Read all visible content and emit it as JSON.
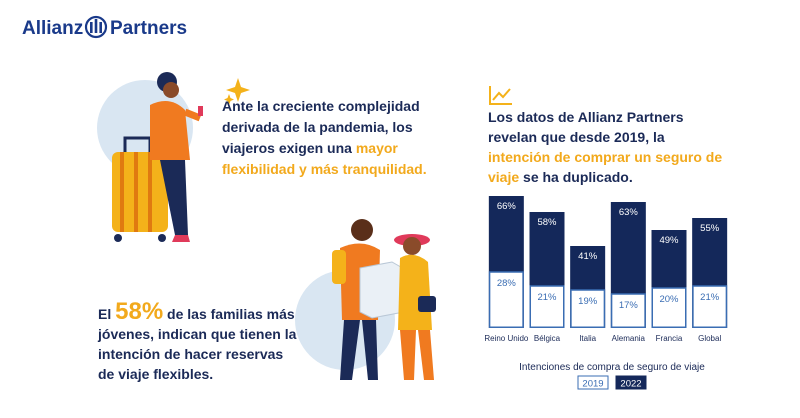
{
  "header": {
    "logo_left": "Allianz",
    "logo_right": "Partners"
  },
  "block1": {
    "text": "Ante la creciente complejidad derivada de la pandemia, los viajeros exigen una ",
    "highlight": "mayor flexibilidad y más tranquilidad."
  },
  "block2": {
    "text": "Los datos de Allianz Partners revelan que desde 2019, la ",
    "highlight": "intención de comprar un seguro de viaje",
    "text_end": " se ha duplicado."
  },
  "block3": {
    "text": "El ",
    "highlight": "58%",
    "text_end": " de las familias más jóvenes, indican que tienen la intención de hacer reservas de viaje flexibles."
  },
  "chart_data": {
    "type": "bar",
    "x_label": "Intenciones de compra de seguro de viaje",
    "categories": [
      "Reino Unido",
      "Bélgica",
      "Italia",
      "Alemania",
      "Francia",
      "Global"
    ],
    "series": [
      {
        "name": "2019",
        "color": "#3a6db3",
        "values": [
          28,
          21,
          19,
          17,
          20,
          21
        ],
        "value_labels": [
          "28%",
          "21%",
          "19%",
          "17%",
          "20%",
          "21%"
        ]
      },
      {
        "name": "2022",
        "color": "#14285a",
        "values": [
          66,
          58,
          41,
          63,
          49,
          55
        ],
        "value_labels": [
          "66%",
          "58%",
          "41%",
          "63%",
          "49%",
          "55%"
        ]
      }
    ]
  }
}
